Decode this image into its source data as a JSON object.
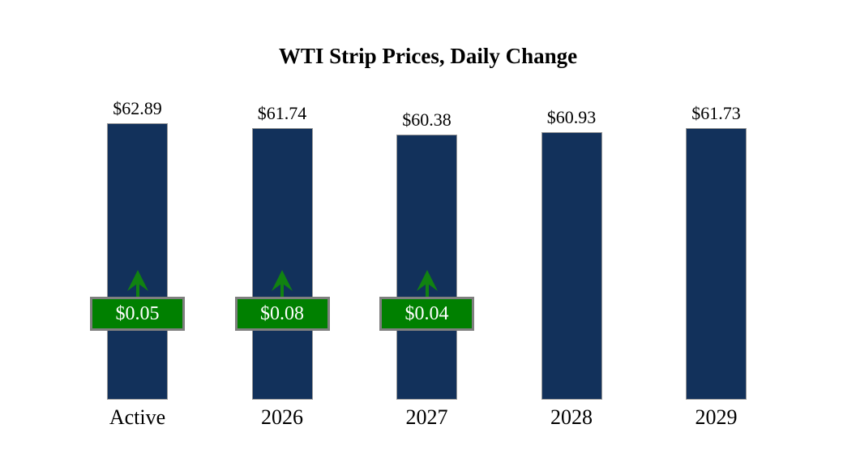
{
  "title": "WTI Strip Prices, Daily Change",
  "chart_data": {
    "type": "bar",
    "title": "WTI Strip Prices, Daily Change",
    "categories": [
      "Active",
      "2026",
      "2027",
      "2028",
      "2029"
    ],
    "values": [
      62.89,
      61.74,
      60.38,
      60.93,
      61.73
    ],
    "value_labels": [
      "$62.89",
      "$61.74",
      "$60.38",
      "$60.93",
      "$61.73"
    ],
    "daily_changes": [
      0.05,
      0.08,
      0.04,
      null,
      null
    ],
    "change_labels": [
      "$0.05",
      "$0.08",
      "$0.04",
      null,
      null
    ],
    "change_directions": [
      "up",
      "up",
      "up",
      null,
      null
    ],
    "xlabel": "",
    "ylabel": "",
    "ylim": [
      0,
      63
    ],
    "grid": false,
    "axes_hidden": true,
    "legend_position": "none",
    "colors": {
      "bar_fill": "#12315b",
      "bar_border": "#999999",
      "badge_fill": "#008000",
      "badge_border": "#7f7f7f",
      "badge_text": "#ffffff",
      "arrow": "#118211",
      "text": "#000000"
    }
  }
}
